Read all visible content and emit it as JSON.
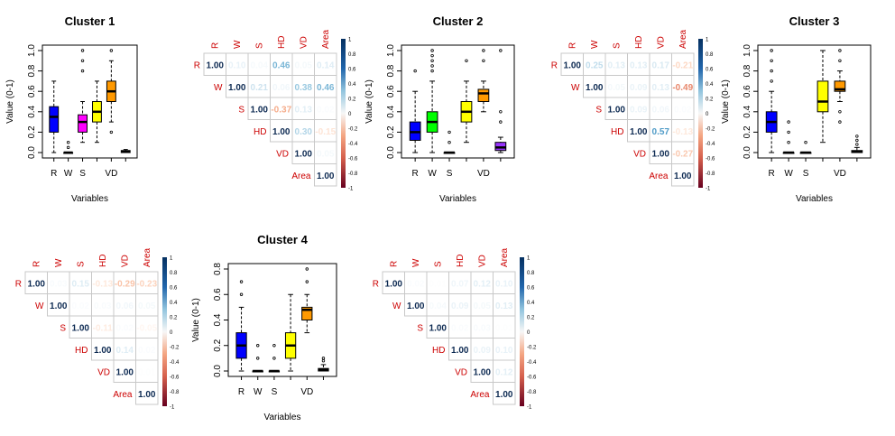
{
  "chart_data": [
    {
      "type": "box",
      "title": "Cluster 1",
      "xlabel": "Variables",
      "ylabel": "Value (0-1)",
      "ylim": [
        0,
        1
      ],
      "yticks": [
        "0.0",
        "0.2",
        "0.4",
        "0.6",
        "0.8",
        "1.0"
      ],
      "categories": [
        "R",
        "W",
        "S",
        "HD",
        "VD",
        "Area"
      ],
      "category_labels_shown": [
        "R",
        "W",
        "S",
        "",
        "VD",
        ""
      ],
      "series": [
        {
          "min": 0.0,
          "q1": 0.2,
          "median": 0.35,
          "q3": 0.45,
          "max": 0.7,
          "outliers": [],
          "color": "#0000ff"
        },
        {
          "min": 0.0,
          "q1": 0.0,
          "median": 0.0,
          "q3": 0.0,
          "max": 0.0,
          "outliers": [
            0.1,
            0.05
          ],
          "color": "#00ff00"
        },
        {
          "min": 0.1,
          "q1": 0.2,
          "median": 0.3,
          "q3": 0.37,
          "max": 0.5,
          "outliers": [
            0.8,
            0.9,
            1.0
          ],
          "color": "#ff00ff"
        },
        {
          "min": 0.1,
          "q1": 0.3,
          "median": 0.4,
          "q3": 0.5,
          "max": 0.7,
          "outliers": [],
          "color": "#ffff00"
        },
        {
          "min": 0.3,
          "q1": 0.5,
          "median": 0.6,
          "q3": 0.7,
          "max": 0.9,
          "outliers": [
            0.2,
            1.0
          ],
          "color": "#ff9900"
        },
        {
          "min": 0.0,
          "q1": 0.0,
          "median": 0.01,
          "q3": 0.02,
          "max": 0.03,
          "outliers": [],
          "color": "#9933ff"
        }
      ]
    },
    {
      "type": "box",
      "title": "Cluster 2",
      "xlabel": "Variables",
      "ylabel": "Value (0-1)",
      "ylim": [
        0,
        1
      ],
      "yticks": [
        "0.0",
        "0.2",
        "0.4",
        "0.6",
        "0.8",
        "1.0"
      ],
      "categories": [
        "R",
        "W",
        "S",
        "HD",
        "VD",
        "Area"
      ],
      "category_labels_shown": [
        "R",
        "W",
        "S",
        "",
        "VD",
        ""
      ],
      "series": [
        {
          "min": 0.0,
          "q1": 0.12,
          "median": 0.2,
          "q3": 0.3,
          "max": 0.6,
          "outliers": [
            0.8
          ],
          "color": "#0000ff"
        },
        {
          "min": 0.0,
          "q1": 0.2,
          "median": 0.3,
          "q3": 0.4,
          "max": 0.7,
          "outliers": [
            0.8,
            0.85,
            0.9,
            0.95,
            1.0
          ],
          "color": "#00ff00"
        },
        {
          "min": 0.0,
          "q1": 0.0,
          "median": 0.0,
          "q3": 0.0,
          "max": 0.0,
          "outliers": [
            0.1,
            0.2
          ],
          "color": "#ff00ff"
        },
        {
          "min": 0.1,
          "q1": 0.3,
          "median": 0.4,
          "q3": 0.5,
          "max": 0.7,
          "outliers": [
            0.9
          ],
          "color": "#ffff00"
        },
        {
          "min": 0.4,
          "q1": 0.5,
          "median": 0.58,
          "q3": 0.62,
          "max": 0.7,
          "outliers": [
            0.9,
            1.0
          ],
          "color": "#ff9900"
        },
        {
          "min": 0.0,
          "q1": 0.02,
          "median": 0.05,
          "q3": 0.1,
          "max": 0.15,
          "outliers": [
            0.3,
            0.4,
            1.0
          ],
          "color": "#9933ff"
        }
      ]
    },
    {
      "type": "box",
      "title": "Cluster 3",
      "xlabel": "Variables",
      "ylabel": "Value (0-1)",
      "ylim": [
        0,
        1
      ],
      "yticks": [
        "0.0",
        "0.2",
        "0.4",
        "0.6",
        "0.8",
        "1.0"
      ],
      "categories": [
        "R",
        "W",
        "S",
        "HD",
        "VD",
        "Area"
      ],
      "category_labels_shown": [
        "R",
        "W",
        "S",
        "",
        "VD",
        ""
      ],
      "series": [
        {
          "min": 0.0,
          "q1": 0.2,
          "median": 0.3,
          "q3": 0.4,
          "max": 0.6,
          "outliers": [
            0.7,
            0.8,
            0.9,
            1.0
          ],
          "color": "#0000ff"
        },
        {
          "min": 0.0,
          "q1": 0.0,
          "median": 0.0,
          "q3": 0.0,
          "max": 0.0,
          "outliers": [
            0.1,
            0.2,
            0.3
          ],
          "color": "#00ff00"
        },
        {
          "min": 0.0,
          "q1": 0.0,
          "median": 0.0,
          "q3": 0.0,
          "max": 0.0,
          "outliers": [
            0.1
          ],
          "color": "#ff00ff"
        },
        {
          "min": 0.1,
          "q1": 0.4,
          "median": 0.5,
          "q3": 0.7,
          "max": 1.0,
          "outliers": [],
          "color": "#ffff00"
        },
        {
          "min": 0.5,
          "q1": 0.6,
          "median": 0.62,
          "q3": 0.7,
          "max": 0.8,
          "outliers": [
            0.3,
            0.4,
            0.9,
            1.0
          ],
          "color": "#ff9900"
        },
        {
          "min": 0.0,
          "q1": 0.0,
          "median": 0.01,
          "q3": 0.02,
          "max": 0.05,
          "outliers": [
            0.08,
            0.12,
            0.16
          ],
          "color": "#9933ff"
        }
      ]
    },
    {
      "type": "box",
      "title": "Cluster 4",
      "xlabel": "Variables",
      "ylabel": "Value (0-1)",
      "ylim": [
        0,
        0.8
      ],
      "yticks": [
        "0.0",
        "0.2",
        "0.4",
        "0.6",
        "0.8"
      ],
      "categories": [
        "R",
        "W",
        "S",
        "HD",
        "VD",
        "Area"
      ],
      "category_labels_shown": [
        "R",
        "W",
        "S",
        "",
        "VD",
        ""
      ],
      "series": [
        {
          "min": 0.0,
          "q1": 0.1,
          "median": 0.2,
          "q3": 0.3,
          "max": 0.5,
          "outliers": [
            0.6,
            0.7
          ],
          "color": "#0000ff"
        },
        {
          "min": 0.0,
          "q1": 0.0,
          "median": 0.0,
          "q3": 0.0,
          "max": 0.0,
          "outliers": [
            0.1,
            0.2
          ],
          "color": "#00ff00"
        },
        {
          "min": 0.0,
          "q1": 0.0,
          "median": 0.0,
          "q3": 0.0,
          "max": 0.0,
          "outliers": [
            0.1,
            0.2
          ],
          "color": "#ff00ff"
        },
        {
          "min": 0.0,
          "q1": 0.1,
          "median": 0.2,
          "q3": 0.3,
          "max": 0.6,
          "outliers": [],
          "color": "#ffff00"
        },
        {
          "min": 0.3,
          "q1": 0.4,
          "median": 0.48,
          "q3": 0.5,
          "max": 0.6,
          "outliers": [
            0.7,
            0.8
          ],
          "color": "#ff9900"
        },
        {
          "min": 0.0,
          "q1": 0.0,
          "median": 0.01,
          "q3": 0.02,
          "max": 0.05,
          "outliers": [
            0.08,
            0.1
          ],
          "color": "#9933ff"
        }
      ]
    },
    {
      "type": "heatmap",
      "variables": [
        "R",
        "W",
        "S",
        "HD",
        "VD",
        "Area"
      ],
      "matrix": [
        [
          1.0,
          0.1,
          0.04,
          0.46,
          0.05,
          0.14
        ],
        [
          null,
          1.0,
          0.21,
          0.06,
          0.38,
          0.46
        ],
        [
          null,
          null,
          1.0,
          -0.37,
          0.13,
          0.02
        ],
        [
          null,
          null,
          null,
          1.0,
          0.3,
          -0.15
        ],
        [
          null,
          null,
          null,
          null,
          1.0,
          0.05
        ],
        [
          null,
          null,
          null,
          null,
          null,
          1.0
        ]
      ],
      "colorbar_ticks": [
        "1",
        "0.8",
        "0.6",
        "0.4",
        "0.2",
        "0",
        "-0.2",
        "-0.4",
        "-0.6",
        "-0.8",
        "-1"
      ]
    },
    {
      "type": "heatmap",
      "variables": [
        "R",
        "W",
        "S",
        "HD",
        "VD",
        "Area"
      ],
      "matrix": [
        [
          1.0,
          0.25,
          0.13,
          0.13,
          0.17,
          -0.21
        ],
        [
          null,
          1.0,
          0.05,
          0.09,
          0.13,
          -0.49
        ],
        [
          null,
          null,
          1.0,
          0.09,
          0.06,
          0.02
        ],
        [
          null,
          null,
          null,
          1.0,
          0.57,
          -0.13
        ],
        [
          null,
          null,
          null,
          null,
          1.0,
          -0.27
        ],
        [
          null,
          null,
          null,
          null,
          null,
          1.0
        ]
      ],
      "colorbar_ticks": [
        "1",
        "0.8",
        "0.6",
        "0.4",
        "0.2",
        "0",
        "-0.2",
        "-0.4",
        "-0.6",
        "-0.8",
        "-1"
      ]
    },
    {
      "type": "heatmap",
      "variables": [
        "R",
        "W",
        "S",
        "HD",
        "VD",
        "Area"
      ],
      "matrix": [
        [
          1.0,
          0.03,
          0.15,
          -0.13,
          -0.29,
          -0.23
        ],
        [
          null,
          1.0,
          0.02,
          0.03,
          0.06,
          0.05
        ],
        [
          null,
          null,
          1.0,
          -0.11,
          0.02,
          -0.05
        ],
        [
          null,
          null,
          null,
          1.0,
          0.14,
          0.02
        ],
        [
          null,
          null,
          null,
          null,
          1.0,
          0.01
        ],
        [
          null,
          null,
          null,
          null,
          null,
          1.0
        ]
      ],
      "colorbar_ticks": [
        "1",
        "0.8",
        "0.6",
        "0.4",
        "0.2",
        "0",
        "-0.2",
        "-0.4",
        "-0.6",
        "-0.8",
        "-1"
      ]
    },
    {
      "type": "heatmap",
      "variables": [
        "R",
        "W",
        "S",
        "HD",
        "VD",
        "Area"
      ],
      "matrix": [
        [
          1.0,
          0.02,
          0.01,
          0.07,
          0.12,
          0.1
        ],
        [
          null,
          1.0,
          0.04,
          0.09,
          0.05,
          0.13
        ],
        [
          null,
          null,
          1.0,
          0.02,
          0.03,
          0.01
        ],
        [
          null,
          null,
          null,
          1.0,
          0.09,
          0.1
        ],
        [
          null,
          null,
          null,
          null,
          1.0,
          0.12
        ],
        [
          null,
          null,
          null,
          null,
          null,
          1.0
        ]
      ],
      "colorbar_ticks": [
        "1",
        "0.8",
        "0.6",
        "0.4",
        "0.2",
        "0",
        "-0.2",
        "-0.4",
        "-0.6",
        "-0.8",
        "-1"
      ]
    }
  ]
}
